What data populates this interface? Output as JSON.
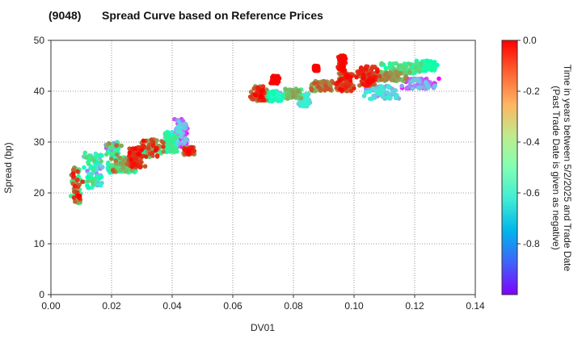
{
  "chart_data": {
    "type": "scatter",
    "title_id": "(9048)",
    "title": "Spread Curve based on Reference Prices",
    "xlabel": "DV01",
    "ylabel": "Spread (bp)",
    "xlim": [
      0.0,
      0.14
    ],
    "ylim": [
      0,
      50
    ],
    "xticks": [
      "0.00",
      "0.02",
      "0.04",
      "0.06",
      "0.08",
      "0.10",
      "0.12",
      "0.14"
    ],
    "yticks": [
      "0",
      "10",
      "20",
      "30",
      "40",
      "50"
    ],
    "grid": true,
    "colorbar": {
      "label_line1": "Time in years between 5/2/2025 and Trade Date",
      "label_line2": "(Past Trade Date is given as negative)",
      "range": [
        -1.0,
        0.0
      ],
      "ticks": [
        "0.0",
        "-0.2",
        "-0.4",
        "-0.6",
        "-0.8"
      ],
      "colormap": "rainbow"
    },
    "clusters": [
      {
        "x": [
          0.0065,
          0.0105
        ],
        "y": [
          18,
          25
        ],
        "t": [
          -0.45,
          0.0
        ]
      },
      {
        "x": [
          0.0105,
          0.0175
        ],
        "y": [
          21,
          28
        ],
        "t": [
          -0.85,
          -0.3
        ]
      },
      {
        "x": [
          0.0175,
          0.0235
        ],
        "y": [
          24,
          30
        ],
        "t": [
          -0.95,
          -0.1
        ]
      },
      {
        "x": [
          0.0205,
          0.0285
        ],
        "y": [
          24,
          27
        ],
        "t": [
          -0.5,
          -0.2
        ]
      },
      {
        "x": [
          0.0245,
          0.0315
        ],
        "y": [
          25,
          29
        ],
        "t": [
          -0.15,
          0.0
        ]
      },
      {
        "x": [
          0.0295,
          0.0375
        ],
        "y": [
          27,
          30.5
        ],
        "t": [
          -0.6,
          0.0
        ]
      },
      {
        "x": [
          0.0365,
          0.0425
        ],
        "y": [
          28,
          32
        ],
        "t": [
          -0.7,
          -0.35
        ]
      },
      {
        "x": [
          0.0405,
          0.0455
        ],
        "y": [
          29,
          34.5
        ],
        "t": [
          -1.0,
          -0.65
        ]
      },
      {
        "x": [
          0.0435,
          0.0475
        ],
        "y": [
          27.5,
          29
        ],
        "t": [
          -0.25,
          0.0
        ]
      },
      {
        "x": [
          0.0655,
          0.0715
        ],
        "y": [
          38,
          41
        ],
        "t": [
          -0.25,
          0.0
        ]
      },
      {
        "x": [
          0.0705,
          0.0775
        ],
        "y": [
          38,
          40
        ],
        "t": [
          -0.9,
          -0.45
        ]
      },
      {
        "x": [
          0.0725,
          0.0755
        ],
        "y": [
          41.5,
          43
        ],
        "t": [
          -0.05,
          0.0
        ]
      },
      {
        "x": [
          0.0765,
          0.0835
        ],
        "y": [
          38.5,
          40.5
        ],
        "t": [
          -0.5,
          -0.2
        ]
      },
      {
        "x": [
          0.0815,
          0.0855
        ],
        "y": [
          37,
          39.5
        ],
        "t": [
          -0.75,
          -0.6
        ]
      },
      {
        "x": [
          0.0855,
          0.0935
        ],
        "y": [
          40,
          42
        ],
        "t": [
          -0.35,
          -0.1
        ]
      },
      {
        "x": [
          0.0865,
          0.0885
        ],
        "y": [
          44,
          45
        ],
        "t": [
          -0.05,
          0.0
        ]
      },
      {
        "x": [
          0.0935,
          0.1005
        ],
        "y": [
          40,
          43.5
        ],
        "t": [
          -0.2,
          0.0
        ]
      },
      {
        "x": [
          0.0945,
          0.0975
        ],
        "y": [
          44,
          47
        ],
        "t": [
          -0.05,
          0.0
        ]
      },
      {
        "x": [
          0.1005,
          0.1085
        ],
        "y": [
          41,
          45
        ],
        "t": [
          -0.15,
          0.0
        ]
      },
      {
        "x": [
          0.1025,
          0.1155
        ],
        "y": [
          38.5,
          41
        ],
        "t": [
          -0.85,
          -0.6
        ]
      },
      {
        "x": [
          0.1055,
          0.1185
        ],
        "y": [
          42,
          44
        ],
        "t": [
          -0.35,
          -0.15
        ]
      },
      {
        "x": [
          0.1085,
          0.1235
        ],
        "y": [
          43.5,
          45.5
        ],
        "t": [
          -0.5,
          -0.3
        ]
      },
      {
        "x": [
          0.1155,
          0.1285
        ],
        "y": [
          40.5,
          42.5
        ],
        "t": [
          -1.0,
          -0.7
        ]
      },
      {
        "x": [
          0.1195,
          0.1275
        ],
        "y": [
          44,
          46
        ],
        "t": [
          -0.5,
          -0.45
        ]
      }
    ]
  }
}
